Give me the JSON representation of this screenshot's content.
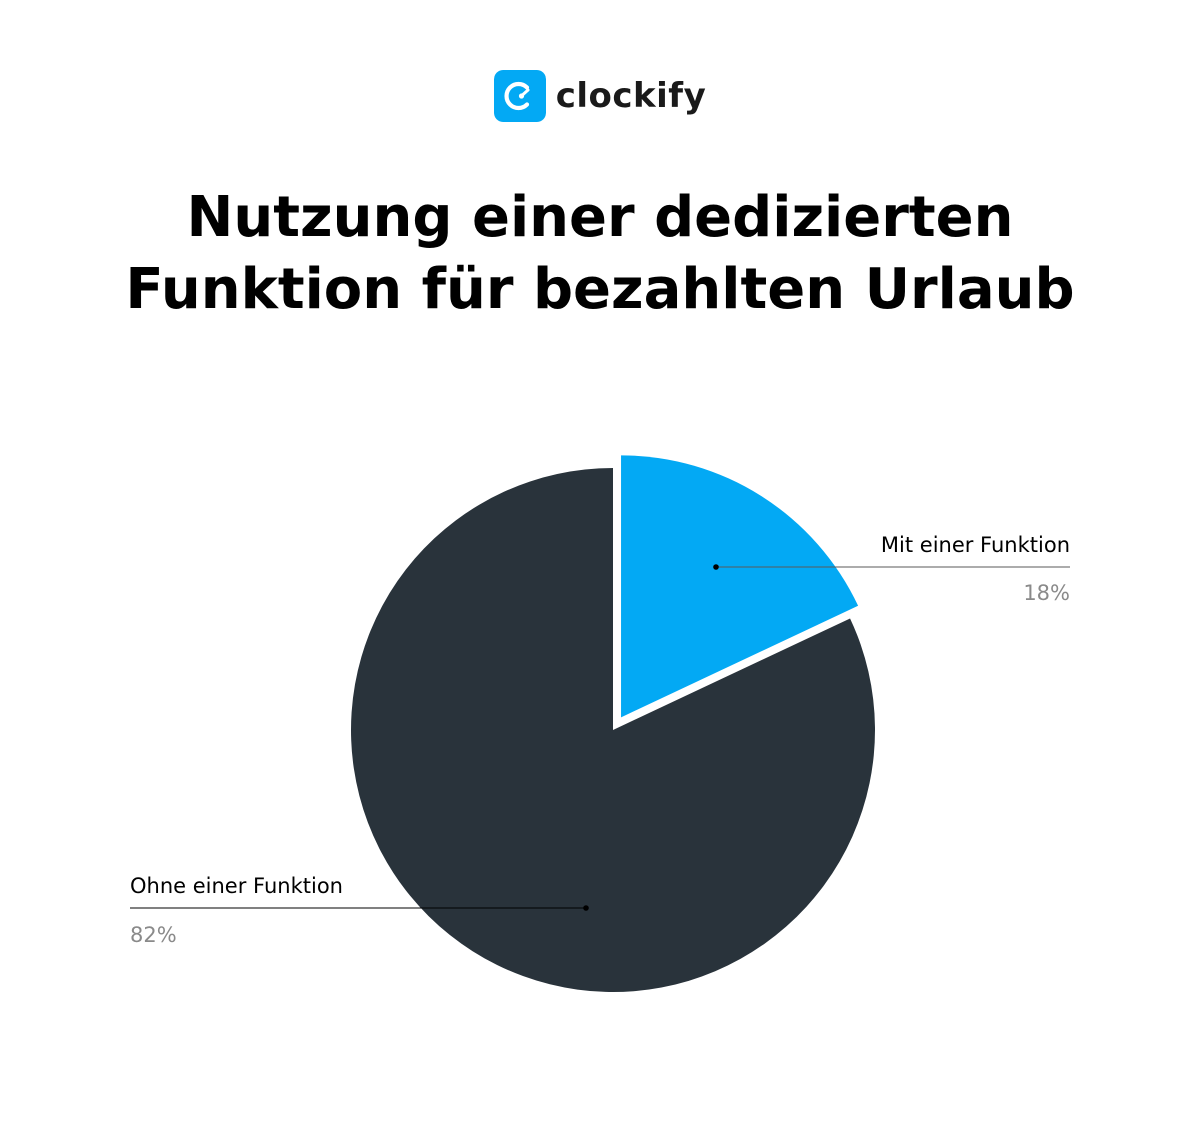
{
  "brand": {
    "name": "clockify",
    "color": "#03A9F4"
  },
  "title_lines": [
    "Nutzung einer dedizierten",
    "Funktion für bezahlten Urlaub"
  ],
  "chart_data": {
    "type": "pie",
    "title": "Nutzung einer dedizierten Funktion für bezahlten Urlaub",
    "start_angle": "12 o'clock",
    "direction": "clockwise",
    "exploded": [
      "Mit einer Funktion"
    ],
    "slices": [
      {
        "label": "Mit einer Funktion",
        "value": 18,
        "display": "18%",
        "color": "#03A9F4"
      },
      {
        "label": "Ohne einer Funktion",
        "value": 82,
        "display": "82%",
        "color": "#29333B"
      }
    ]
  }
}
